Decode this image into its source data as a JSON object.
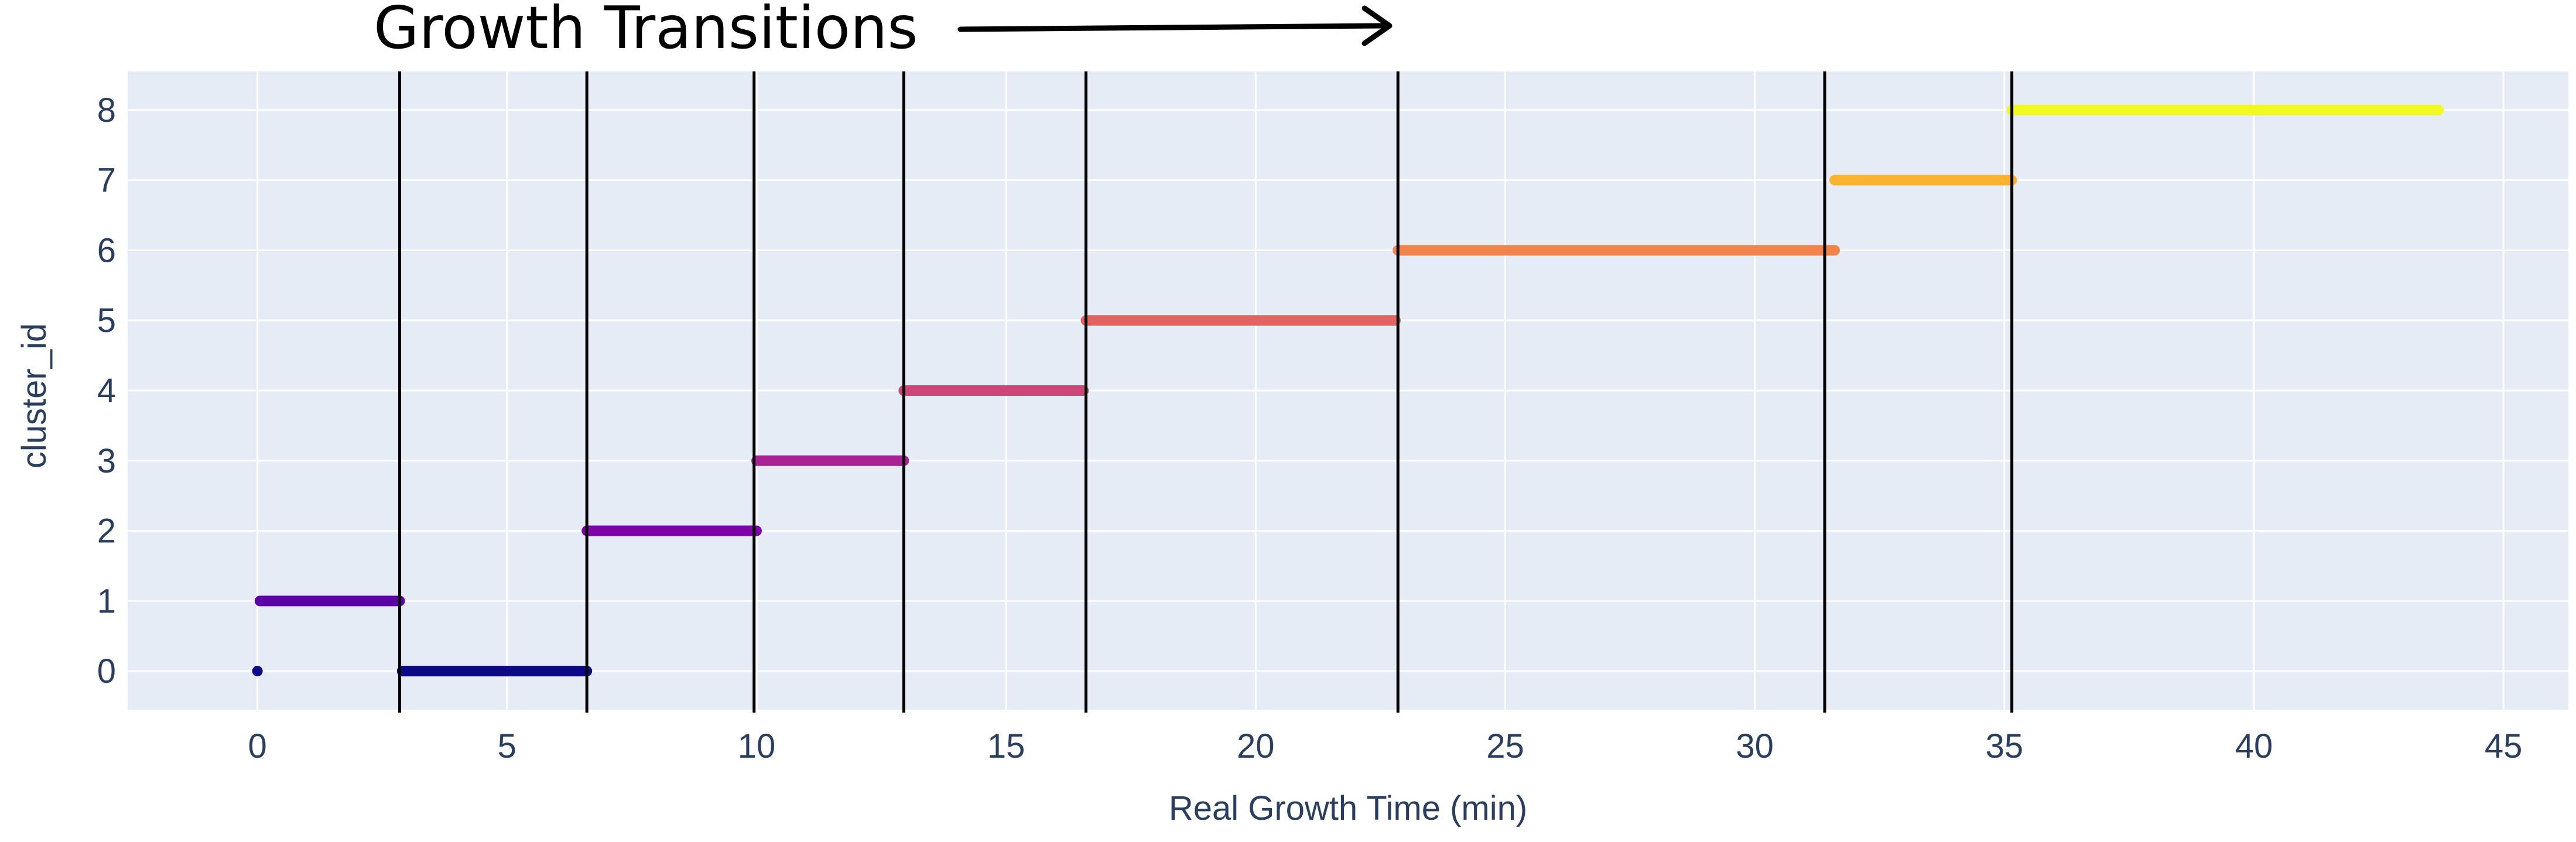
{
  "chart_data": {
    "type": "scatter",
    "annotation": "Growth Transitions",
    "xlabel": "Real Growth Time (min)",
    "ylabel": "cluster_id",
    "xlim": [
      -2.6,
      46.3
    ],
    "ylim": [
      -0.55,
      8.55
    ],
    "xticks": [
      0,
      5,
      10,
      15,
      20,
      25,
      30,
      35,
      40,
      45
    ],
    "yticks": [
      0,
      1,
      2,
      3,
      4,
      5,
      6,
      7,
      8
    ],
    "grid": true,
    "legend": "none",
    "series": [
      {
        "cluster_id": 0,
        "color": "#0d0887",
        "segments": [
          [
            0.0,
            0.0
          ],
          [
            2.9,
            6.6
          ]
        ]
      },
      {
        "cluster_id": 1,
        "color": "#5c01a6",
        "segments": [
          [
            0.05,
            2.85
          ]
        ]
      },
      {
        "cluster_id": 2,
        "color": "#7e03a8",
        "segments": [
          [
            6.6,
            10.0
          ]
        ]
      },
      {
        "cluster_id": 3,
        "color": "#a82296",
        "segments": [
          [
            10.0,
            12.95
          ]
        ]
      },
      {
        "cluster_id": 4,
        "color": "#cc4778",
        "segments": [
          [
            12.95,
            16.55
          ]
        ]
      },
      {
        "cluster_id": 5,
        "color": "#e16462",
        "segments": [
          [
            16.6,
            22.8
          ]
        ]
      },
      {
        "cluster_id": 6,
        "color": "#f2844b",
        "segments": [
          [
            22.85,
            31.6
          ]
        ]
      },
      {
        "cluster_id": 7,
        "color": "#fbb32f",
        "segments": [
          [
            31.6,
            35.15
          ]
        ]
      },
      {
        "cluster_id": 8,
        "color": "#f0f921",
        "segments": [
          [
            35.15,
            43.7
          ]
        ]
      }
    ],
    "transitions": [
      2.85,
      6.6,
      9.95,
      12.95,
      16.6,
      22.85,
      31.4,
      35.15
    ],
    "colors": {
      "plot_bg": "#e5ecf6",
      "grid": "#ffffff",
      "tick_text": "#2a3f5f",
      "transition_line": "#000000"
    }
  }
}
